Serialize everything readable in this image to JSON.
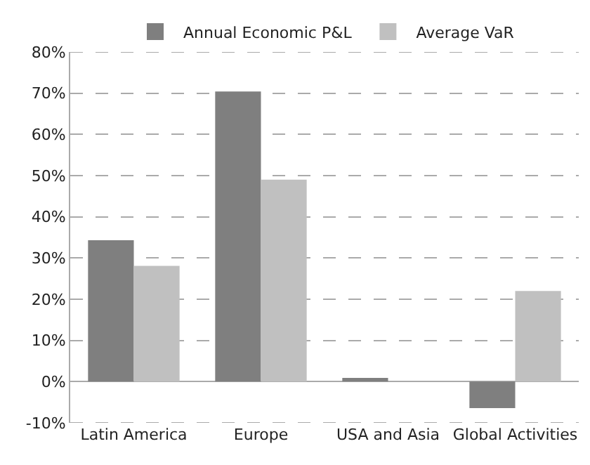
{
  "chart_data": {
    "type": "bar",
    "categories": [
      "Latin America",
      "Europe",
      "USA and Asia",
      "Global Activities"
    ],
    "series": [
      {
        "name": "Annual Economic P&L",
        "color": "#7f7f7f",
        "values": [
          34.3,
          70.4,
          0.9,
          -6.4
        ]
      },
      {
        "name": "Average VaR",
        "color": "#c0c0c0",
        "values": [
          28.1,
          49.0,
          null,
          22.0
        ]
      }
    ],
    "ylim": [
      -10,
      80
    ],
    "yticks": [
      {
        "value": -10,
        "label": "-10%"
      },
      {
        "value": 0,
        "label": "0%"
      },
      {
        "value": 10,
        "label": "10%"
      },
      {
        "value": 20,
        "label": "20%"
      },
      {
        "value": 30,
        "label": "30%"
      },
      {
        "value": 40,
        "label": "40%"
      },
      {
        "value": 50,
        "label": "50%"
      },
      {
        "value": 60,
        "label": "60%"
      },
      {
        "value": 70,
        "label": "70%"
      },
      {
        "value": 80,
        "label": "80%"
      }
    ],
    "grid": "y",
    "legend": "top"
  }
}
